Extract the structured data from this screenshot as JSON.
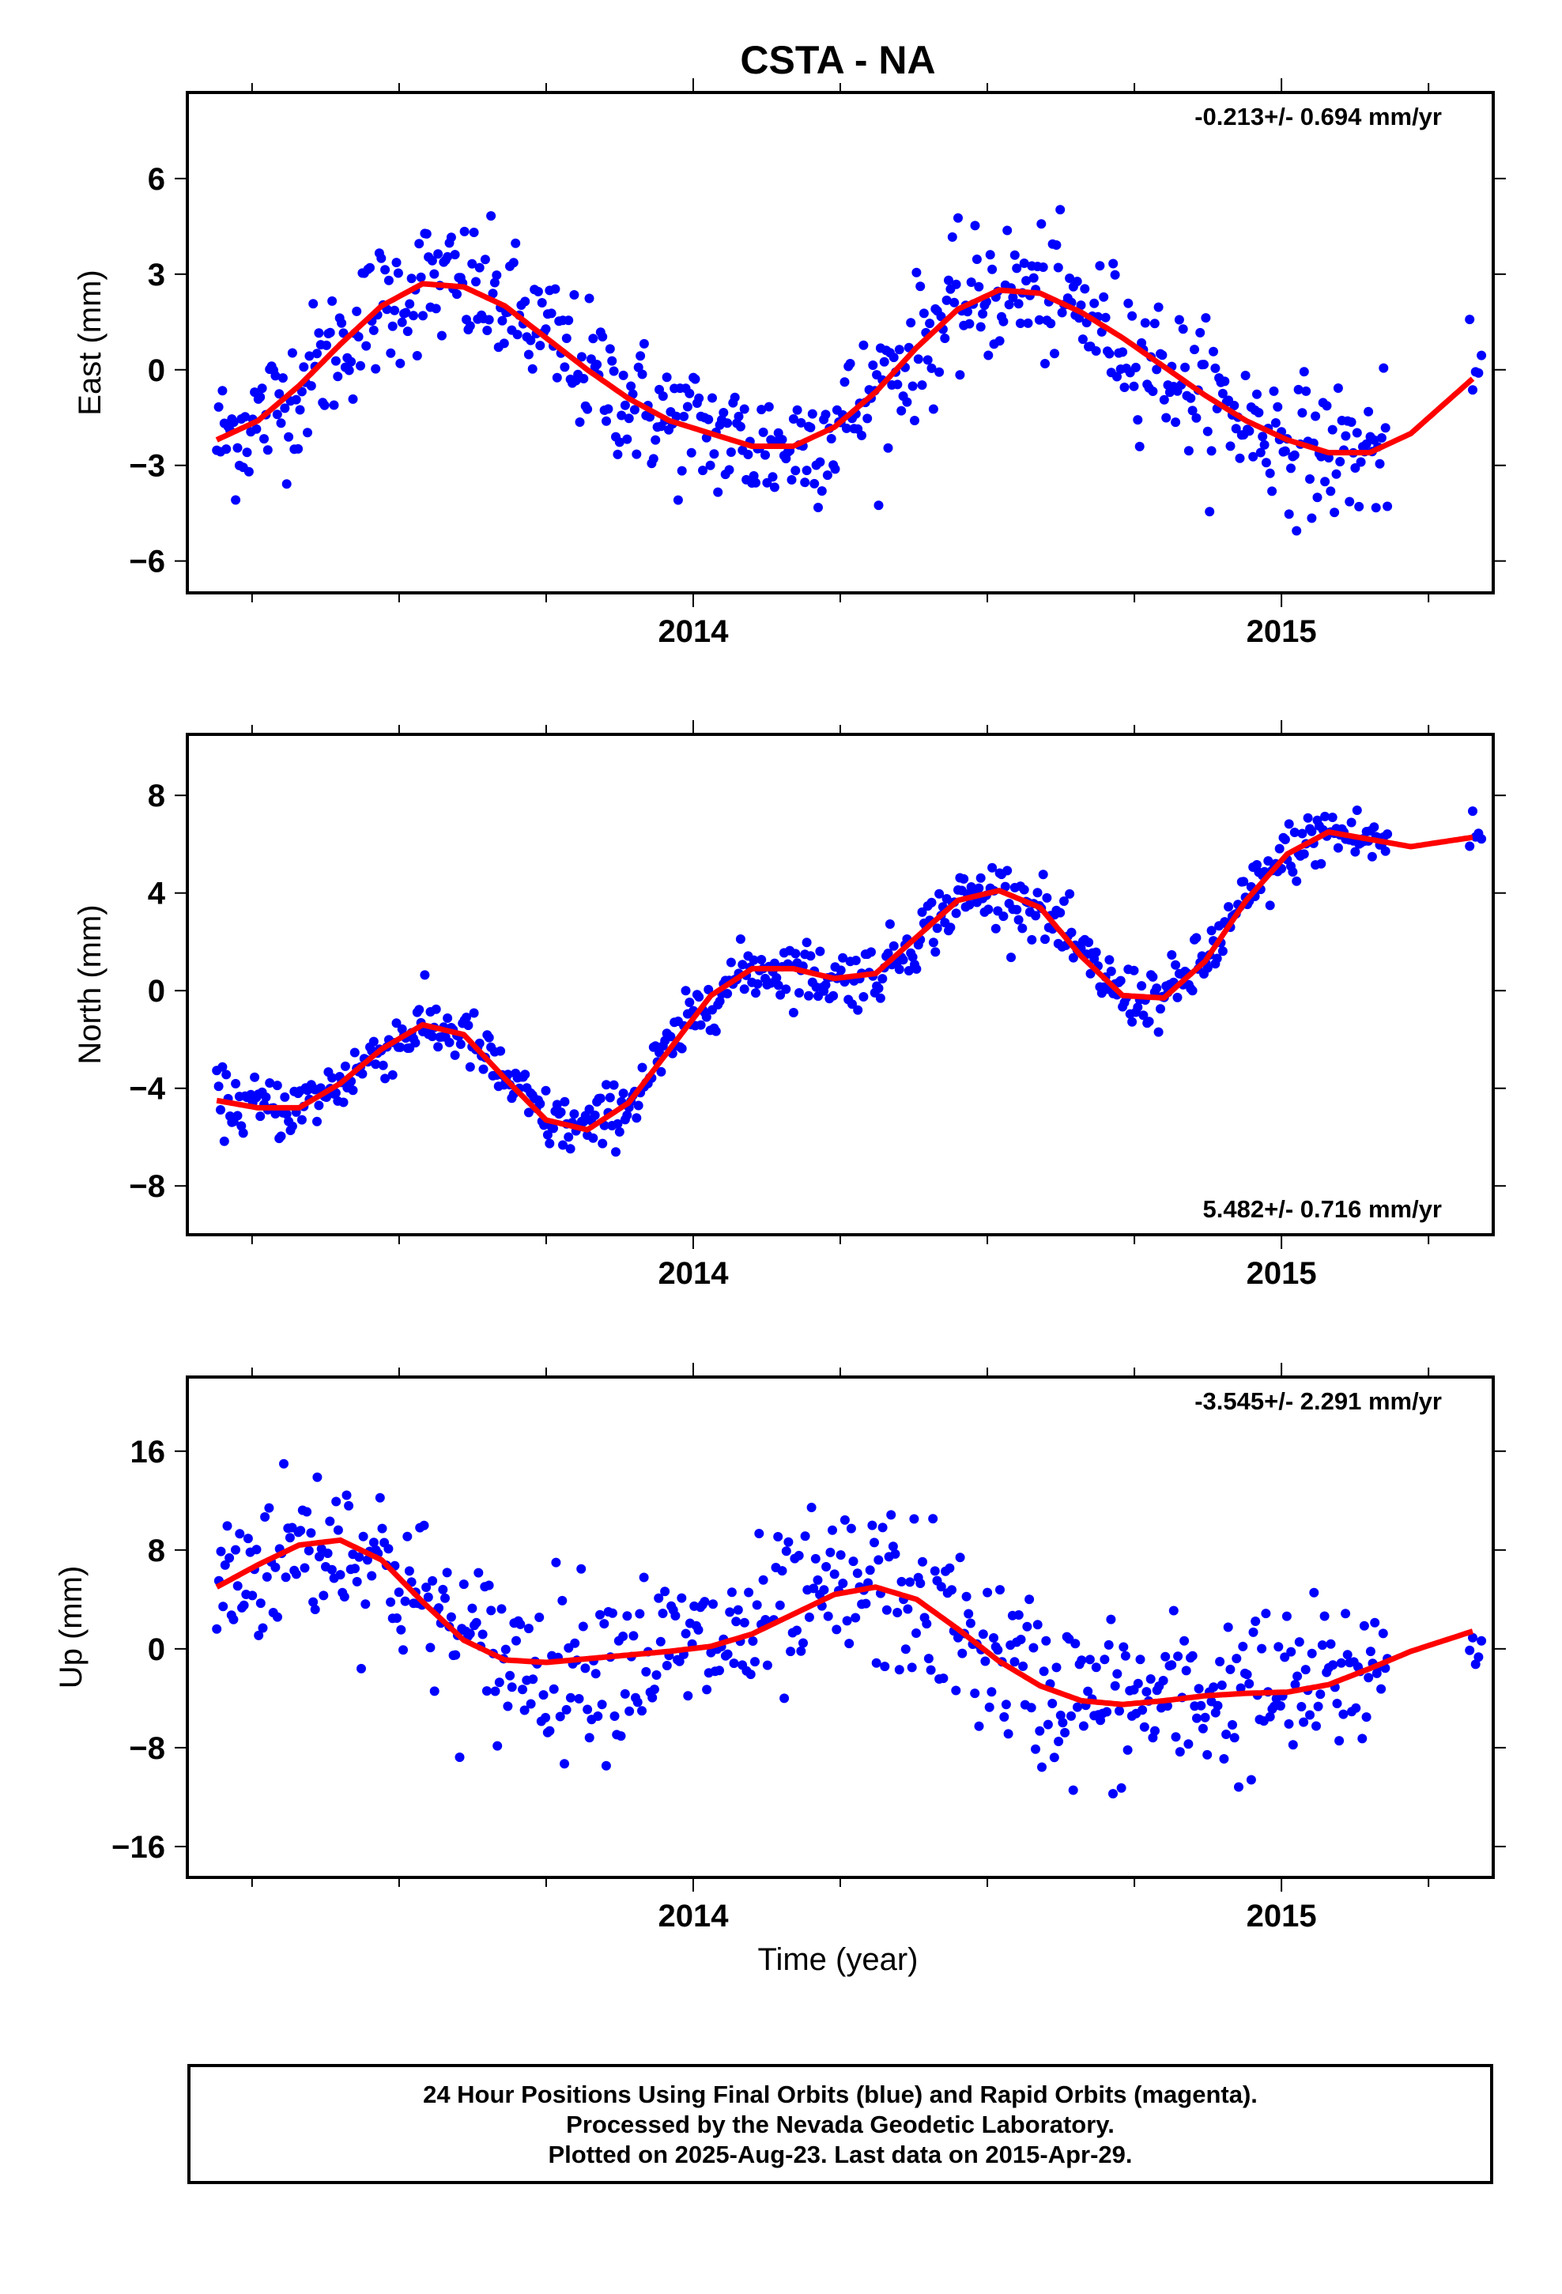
{
  "figure_title": "CSTA - NA",
  "xlabel": "Time (year)",
  "caption": [
    "24 Hour Positions Using Final Orbits (blue) and Rapid Orbits (magenta).",
    "Processed by the Nevada Geodetic Laboratory.",
    "Plotted on 2025-Aug-23. Last data on 2015-Apr-29."
  ],
  "colors": {
    "data": "#0000ff",
    "model": "#ff0000",
    "frame": "#000000"
  },
  "chart_data": [
    {
      "type": "scatter",
      "title": "",
      "ylabel": "East (mm)",
      "xlabel": "",
      "xlim": [
        2013.14,
        2015.36
      ],
      "ylim": [
        -7,
        8.7
      ],
      "xticks": [
        2014,
        2015
      ],
      "yticks": [
        6,
        3,
        0,
        -3,
        -6
      ],
      "rate_label": "-0.213+/- 0.694 mm/yr",
      "rate_position": "top-right",
      "grid": false,
      "model": {
        "name": "",
        "x": [
          2013.19,
          2013.26,
          2013.33,
          2013.4,
          2013.47,
          2013.54,
          2013.61,
          2013.68,
          2013.75,
          2013.82,
          2013.89,
          2013.96,
          2014.03,
          2014.1,
          2014.17,
          2014.24,
          2014.31,
          2014.38,
          2014.45,
          2014.52,
          2014.59,
          2014.66,
          2014.73,
          2014.8,
          2014.87,
          2014.94,
          2015.01,
          2015.08,
          2015.15,
          2015.22,
          2015.33
        ],
        "y": [
          -2.2,
          -1.6,
          -0.5,
          0.8,
          2.0,
          2.7,
          2.6,
          2.0,
          1.0,
          0.0,
          -0.9,
          -1.6,
          -2.0,
          -2.4,
          -2.4,
          -1.8,
          -0.7,
          0.7,
          1.9,
          2.5,
          2.4,
          1.8,
          1.0,
          0.1,
          -0.8,
          -1.6,
          -2.2,
          -2.6,
          -2.6,
          -2.0,
          -0.2
        ]
      },
      "series_template": {
        "name": "",
        "x_start": 2013.19,
        "x_end": 2015.18,
        "n": 620,
        "tail_x": [
          2015.32,
          2015.325,
          2015.33,
          2015.335,
          2015.34
        ],
        "noise": 1.5
      }
    },
    {
      "type": "scatter",
      "title": "",
      "ylabel": "North (mm)",
      "xlabel": "",
      "xlim": [
        2013.14,
        2015.36
      ],
      "ylim": [
        -10,
        10.5
      ],
      "xticks": [
        2014,
        2015
      ],
      "yticks": [
        8,
        4,
        0,
        -4,
        -8
      ],
      "rate_label": "5.482+/- 0.716 mm/yr",
      "rate_position": "bottom-right",
      "grid": false,
      "model": {
        "name": "",
        "x": [
          2013.19,
          2013.26,
          2013.33,
          2013.4,
          2013.47,
          2013.54,
          2013.61,
          2013.68,
          2013.75,
          2013.82,
          2013.89,
          2013.96,
          2014.03,
          2014.1,
          2014.17,
          2014.24,
          2014.31,
          2014.38,
          2014.45,
          2014.52,
          2014.59,
          2014.66,
          2014.73,
          2014.8,
          2014.87,
          2014.94,
          2015.01,
          2015.08,
          2015.15,
          2015.22,
          2015.33
        ],
        "y": [
          -4.5,
          -4.8,
          -4.8,
          -3.8,
          -2.4,
          -1.4,
          -1.8,
          -3.6,
          -5.3,
          -5.7,
          -4.6,
          -2.4,
          -0.2,
          0.9,
          0.9,
          0.5,
          0.7,
          2.2,
          3.7,
          4.1,
          3.4,
          1.4,
          -0.2,
          -0.3,
          1.2,
          3.7,
          5.6,
          6.5,
          6.2,
          5.9,
          6.3
        ]
      },
      "series_template": {
        "name": "",
        "x_start": 2013.19,
        "x_end": 2015.18,
        "n": 620,
        "tail_x": [
          2015.32,
          2015.325,
          2015.33,
          2015.335,
          2015.34
        ],
        "noise": 0.9
      }
    },
    {
      "type": "scatter",
      "title": "",
      "ylabel": "Up (mm)",
      "xlabel": "Time (year)",
      "xlim": [
        2013.14,
        2015.36
      ],
      "ylim": [
        -18.5,
        22
      ],
      "xticks": [
        2014,
        2015
      ],
      "yticks": [
        16,
        8,
        0,
        -8,
        -16
      ],
      "rate_label": "-3.545+/- 2.291 mm/yr",
      "rate_position": "top-right",
      "grid": false,
      "model": {
        "name": "",
        "x": [
          2013.19,
          2013.26,
          2013.33,
          2013.4,
          2013.47,
          2013.54,
          2013.61,
          2013.68,
          2013.75,
          2013.82,
          2013.89,
          2013.96,
          2014.03,
          2014.1,
          2014.17,
          2014.24,
          2014.31,
          2014.38,
          2014.45,
          2014.52,
          2014.59,
          2014.66,
          2014.73,
          2014.8,
          2014.87,
          2014.94,
          2015.01,
          2015.08,
          2015.15,
          2015.22,
          2015.33
        ],
        "y": [
          5.0,
          6.8,
          8.4,
          8.8,
          7.2,
          3.8,
          0.7,
          -0.9,
          -1.1,
          -0.8,
          -0.5,
          -0.2,
          0.2,
          1.2,
          2.8,
          4.4,
          5.0,
          4.0,
          1.6,
          -1.0,
          -3.0,
          -4.2,
          -4.5,
          -4.2,
          -3.8,
          -3.6,
          -3.5,
          -2.9,
          -1.6,
          -0.2,
          1.5
        ]
      },
      "series_template": {
        "name": "",
        "x_start": 2013.19,
        "x_end": 2015.18,
        "n": 560,
        "tail_x": [
          2015.32,
          2015.325,
          2015.33,
          2015.335,
          2015.34
        ],
        "noise": 4.8
      }
    }
  ]
}
